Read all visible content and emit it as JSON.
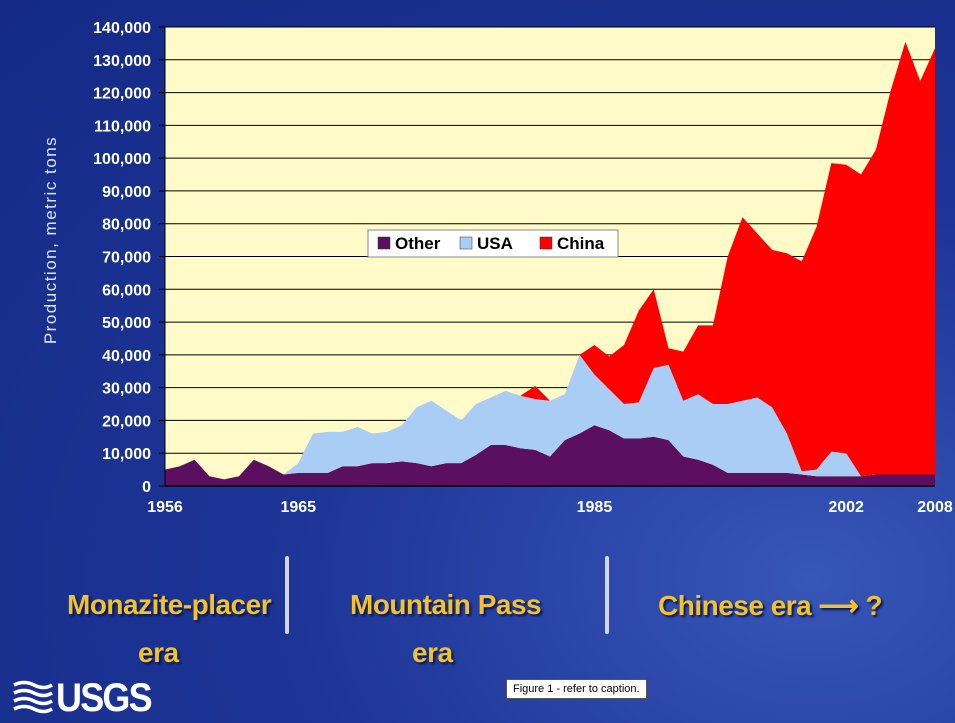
{
  "chart_data": {
    "type": "area",
    "stacked": true,
    "title": "",
    "xlabel": "",
    "ylabel": "Production, metric tons",
    "ylim": [
      0,
      140000
    ],
    "xlim": [
      1956,
      2008
    ],
    "grid": true,
    "legend": "center",
    "yticks": [
      "0",
      "10,000",
      "20,000",
      "30,000",
      "40,000",
      "50,000",
      "60,000",
      "70,000",
      "80,000",
      "90,000",
      "100,000",
      "110,000",
      "120,000",
      "130,000",
      "140,000"
    ],
    "xticks": [
      {
        "value": 1956,
        "label": "1956"
      },
      {
        "value": 1965,
        "label": "1965"
      },
      {
        "value": 1985,
        "label": "1985"
      },
      {
        "value": 2002,
        "label": "2002"
      },
      {
        "value": 2008,
        "label": "2008"
      }
    ],
    "x": [
      1956,
      1957,
      1958,
      1959,
      1960,
      1961,
      1962,
      1963,
      1964,
      1965,
      1966,
      1967,
      1968,
      1969,
      1970,
      1971,
      1972,
      1973,
      1974,
      1975,
      1976,
      1977,
      1978,
      1979,
      1980,
      1981,
      1982,
      1983,
      1984,
      1985,
      1986,
      1987,
      1988,
      1989,
      1990,
      1991,
      1992,
      1993,
      1994,
      1995,
      1996,
      1997,
      1998,
      1999,
      2000,
      2001,
      2002,
      2003,
      2004,
      2005,
      2006,
      2007,
      2008
    ],
    "series": [
      {
        "name": "Other",
        "color": "#5a0f5f",
        "values": [
          5000,
          6000,
          8000,
          3000,
          2000,
          3000,
          8000,
          6000,
          3500,
          4000,
          4000,
          4000,
          6000,
          6000,
          7000,
          7000,
          7500,
          7000,
          6000,
          7000,
          7000,
          9500,
          12500,
          12500,
          11500,
          11000,
          9000,
          14000,
          16000,
          18500,
          17000,
          14500,
          14500,
          15000,
          14000,
          9000,
          8000,
          6500,
          4000,
          4000,
          4000,
          4000,
          4000,
          3500,
          3000,
          3000,
          3000,
          3000,
          3500,
          3500,
          3500,
          3500,
          3500
        ]
      },
      {
        "name": "USA",
        "color": "#a9cdf4",
        "values": [
          0,
          0,
          0,
          0,
          0,
          0,
          0,
          0,
          0,
          3000,
          12000,
          12500,
          10500,
          12000,
          9000,
          9500,
          11000,
          17000,
          20000,
          16000,
          13000,
          15500,
          14500,
          16500,
          16000,
          15500,
          17000,
          14000,
          24000,
          15500,
          12500,
          10500,
          11000,
          21000,
          23000,
          17000,
          20000,
          18500,
          21000,
          22000,
          23000,
          20000,
          12000,
          1000,
          2000,
          7500,
          7000,
          0,
          0,
          0,
          0,
          0,
          0
        ]
      },
      {
        "name": "China",
        "color": "#ff0000",
        "values": [
          0,
          0,
          0,
          0,
          0,
          0,
          0,
          0,
          0,
          0,
          0,
          0,
          0,
          0,
          0,
          0,
          0,
          0,
          0,
          0,
          0,
          0,
          0,
          0,
          0,
          4000,
          0,
          0,
          0,
          9000,
          10000,
          18000,
          28000,
          24000,
          5000,
          15000,
          21000,
          24000,
          45000,
          56000,
          50000,
          48000,
          55000,
          64000,
          74000,
          88000,
          88000,
          92000,
          99000,
          117000,
          132000,
          120000,
          130000
        ]
      }
    ]
  },
  "eras": {
    "first_line1": "Monazite-placer",
    "first_line2": "era",
    "second_line1": "Mountain Pass",
    "second_line2": "era",
    "third": "Chinese era ⟶ ?"
  },
  "caption": "Figure 1 - refer to caption.",
  "logo_text": "USGS",
  "colors": {
    "background": "#1d3597",
    "plot_area": "#fffbc9",
    "era_text": "#f2c12e"
  }
}
